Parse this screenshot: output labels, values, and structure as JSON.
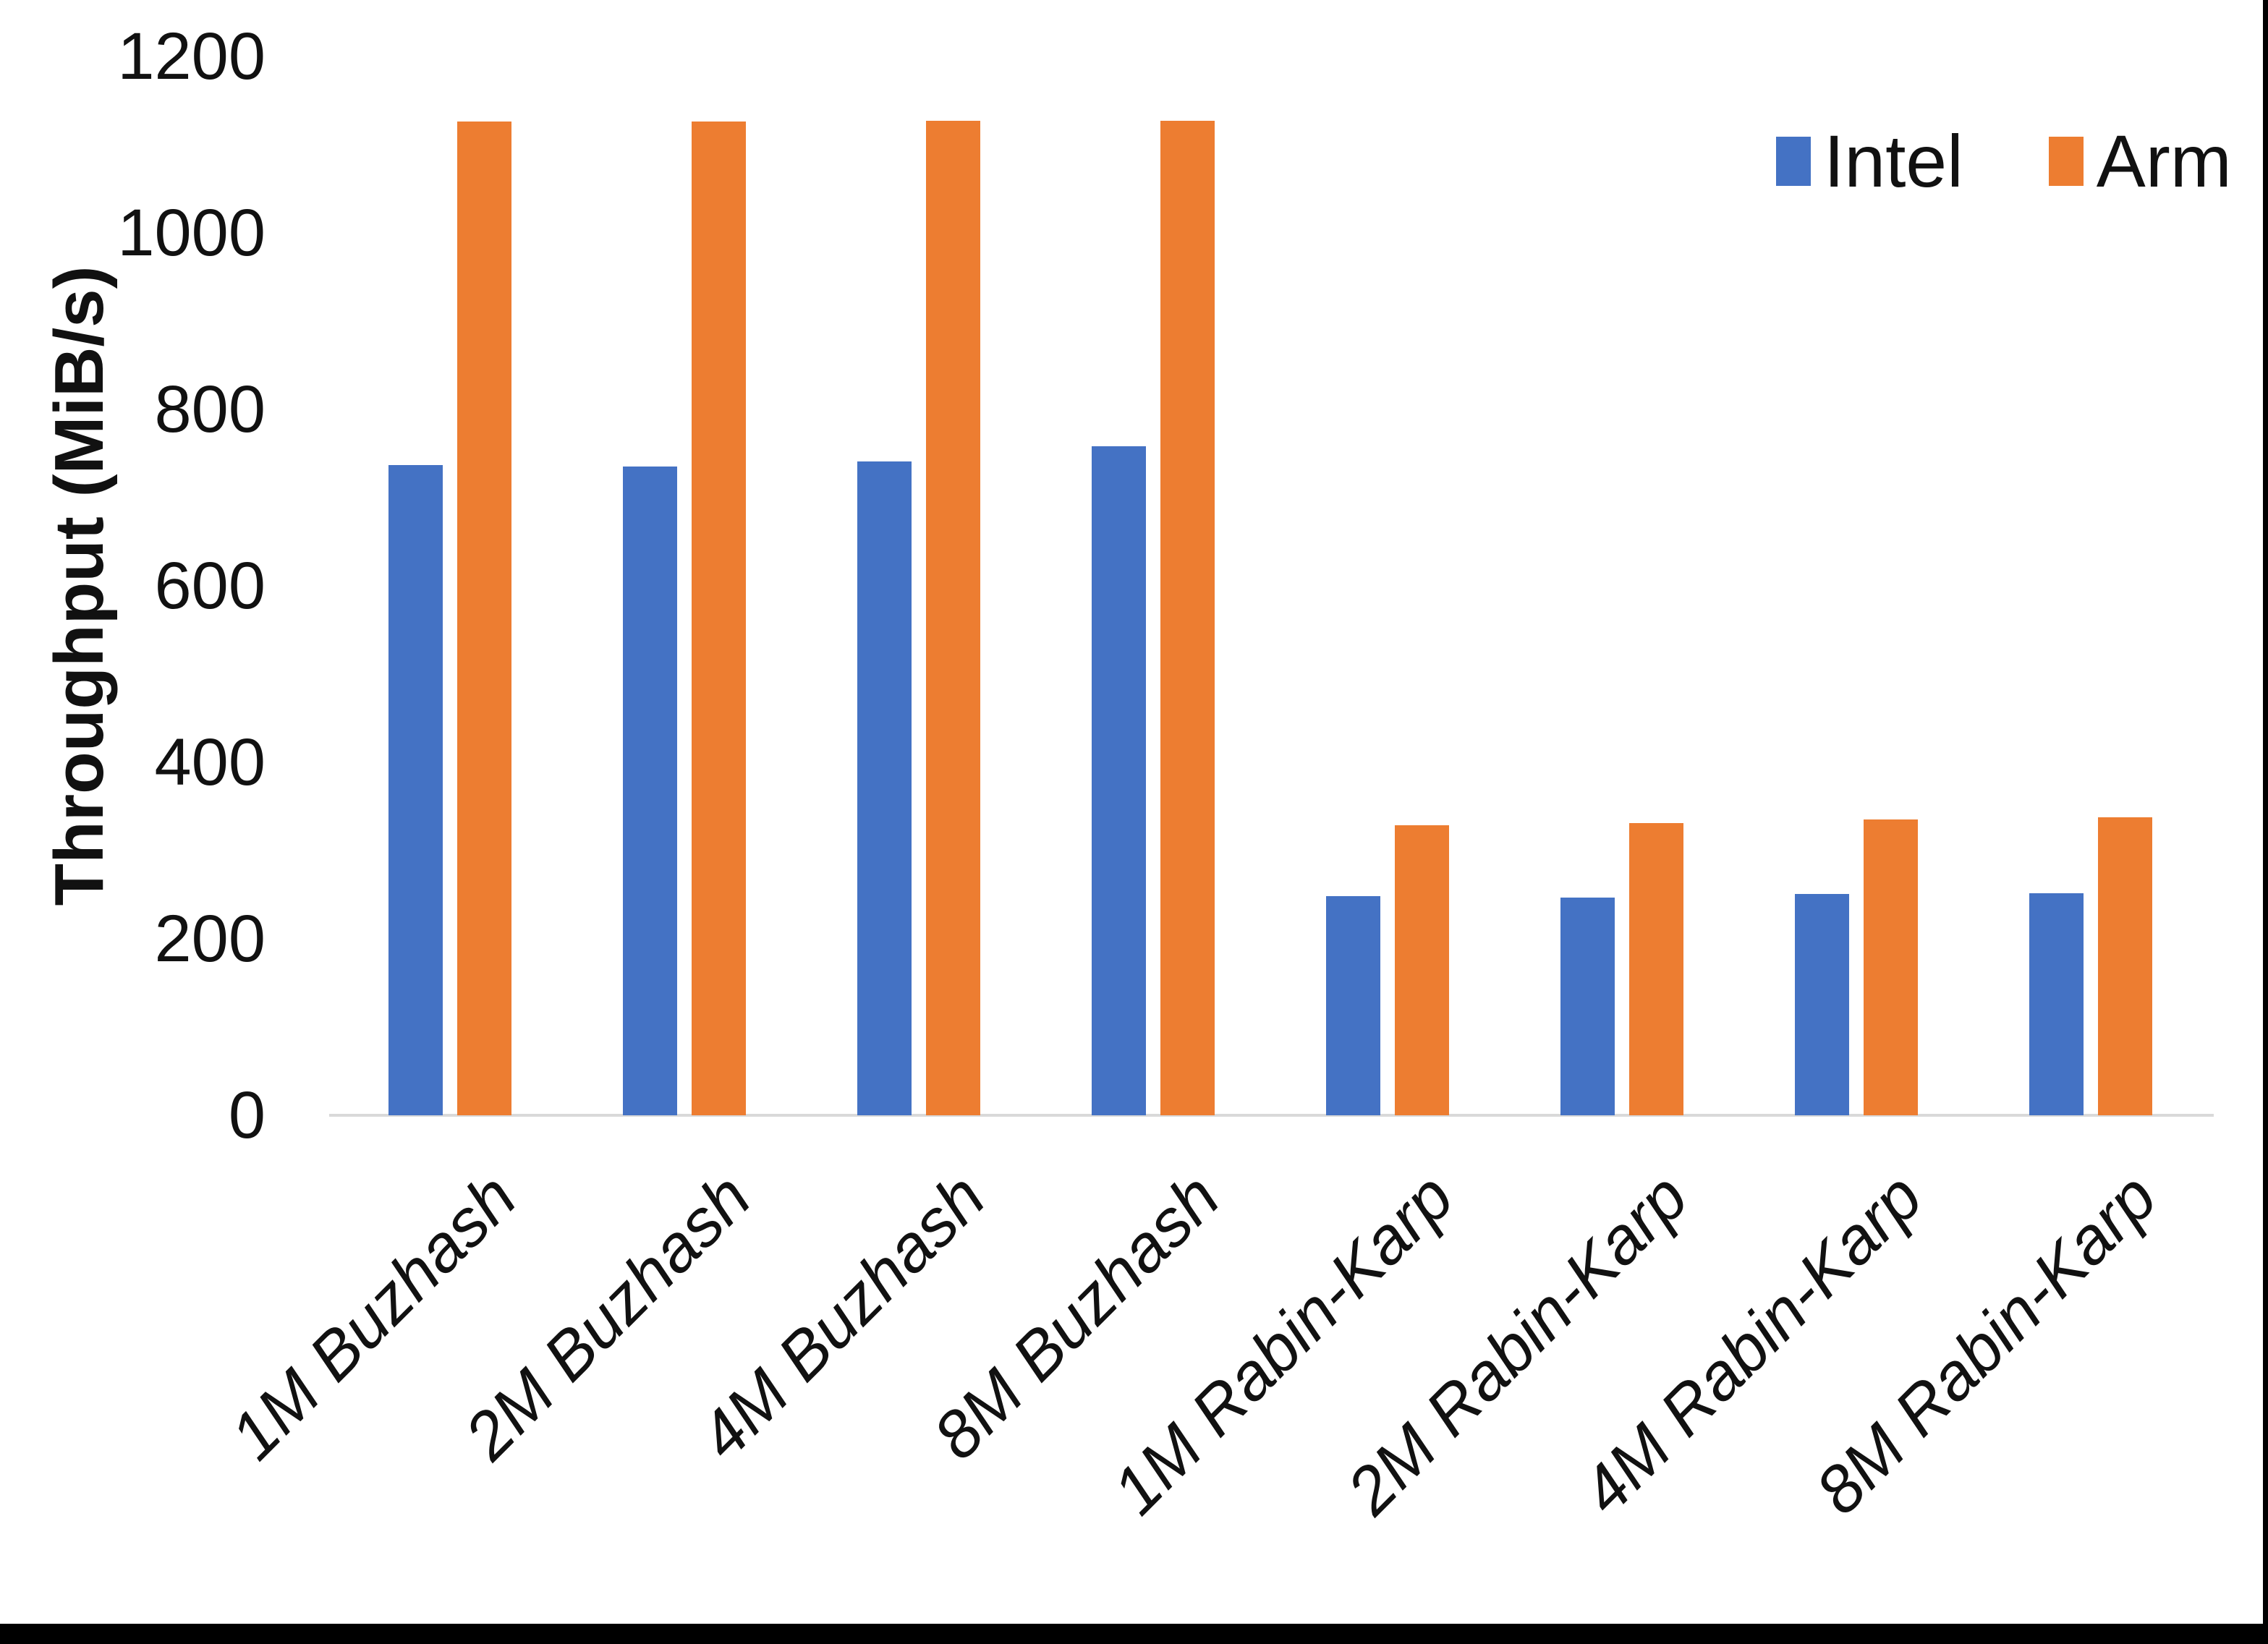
{
  "chart_data": {
    "type": "bar",
    "title": "",
    "xlabel": "",
    "ylabel": "Throughput (MiB/s)",
    "ylim": [
      0,
      1200
    ],
    "yticks": [
      0,
      200,
      400,
      600,
      800,
      1000,
      1200
    ],
    "grid": false,
    "legend_position": "top-right-inside",
    "categories": [
      "1M Buzhash",
      "2M Buzhash",
      "4M Buzhash",
      "8M Buzhash",
      "1M Rabin-Karp",
      "2M Rabin-Karp",
      "4M Rabin-Karp",
      "8M Rabin-Karp"
    ],
    "series": [
      {
        "name": "Intel",
        "color": "#4472C4",
        "values": [
          737,
          735,
          741,
          758,
          248,
          247,
          251,
          252
        ]
      },
      {
        "name": "Arm",
        "color": "#ED7D31",
        "values": [
          1126,
          1126,
          1127,
          1127,
          329,
          331,
          335,
          338
        ]
      }
    ]
  },
  "page": {
    "background": "#ffffff",
    "frame_color": "#000000",
    "axis_line_color": "#d9d9d9",
    "text_color": "#111111"
  }
}
